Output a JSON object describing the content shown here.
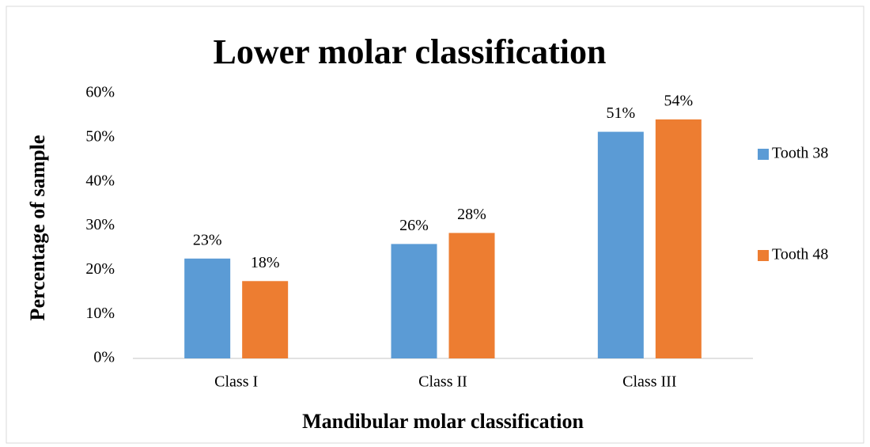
{
  "chart_data": {
    "type": "bar",
    "title": "Lower molar classification",
    "x_label": "Mandibular molar classification",
    "y_label": "Percentage of sample",
    "categories": [
      "Class I",
      "Class II",
      "Class III"
    ],
    "series": [
      {
        "name": "Tooth 38",
        "color": "#5b9bd5",
        "values": [
          22.6,
          25.9,
          51.3
        ],
        "value_labels": [
          "23%",
          "26%",
          "51%"
        ]
      },
      {
        "name": "Tooth 48",
        "color": "#ed7d31",
        "values": [
          17.5,
          28.4,
          54.1
        ],
        "value_labels": [
          "18%",
          "28%",
          "54%"
        ]
      }
    ],
    "ylim": [
      0,
      60
    ],
    "yticks": [
      {
        "value": 0,
        "label": "0%"
      },
      {
        "value": 10,
        "label": "10%"
      },
      {
        "value": 20,
        "label": "20%"
      },
      {
        "value": 30,
        "label": "30%"
      },
      {
        "value": 40,
        "label": "40%"
      },
      {
        "value": 50,
        "label": "50%"
      },
      {
        "value": 60,
        "label": "60%"
      }
    ],
    "grid": false,
    "legend": "right"
  }
}
